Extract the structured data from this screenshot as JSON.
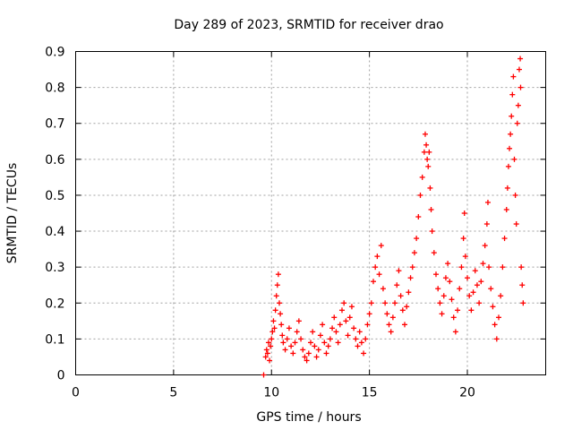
{
  "chart_data": {
    "type": "scatter",
    "title": "Day 289 of 2023, SRMTID for receiver drao",
    "xlabel": "GPS time / hours",
    "ylabel": "SRMTID / TECUs",
    "xlim": [
      0,
      24
    ],
    "ylim": [
      0,
      0.9
    ],
    "x_ticks": [
      "0",
      "5",
      "10",
      "15",
      "20"
    ],
    "x_tick_values": [
      0,
      5,
      10,
      15,
      20
    ],
    "y_ticks": [
      "0",
      "0.1",
      "0.2",
      "0.3",
      "0.4",
      "0.5",
      "0.6",
      "0.7",
      "0.8",
      "0.9"
    ],
    "y_tick_values": [
      0,
      0.1,
      0.2,
      0.3,
      0.4,
      0.5,
      0.6,
      0.7,
      0.8,
      0.9
    ],
    "grid": true,
    "series": [
      {
        "name": "SRMTID",
        "color": "#ff0000",
        "marker": "plus",
        "points": [
          [
            9.6,
            0.0
          ],
          [
            9.7,
            0.05
          ],
          [
            9.75,
            0.07
          ],
          [
            9.8,
            0.06
          ],
          [
            9.85,
            0.09
          ],
          [
            9.9,
            0.04
          ],
          [
            9.95,
            0.08
          ],
          [
            10.0,
            0.1
          ],
          [
            10.05,
            0.12
          ],
          [
            10.1,
            0.15
          ],
          [
            10.15,
            0.13
          ],
          [
            10.2,
            0.18
          ],
          [
            10.25,
            0.22
          ],
          [
            10.3,
            0.25
          ],
          [
            10.35,
            0.28
          ],
          [
            10.4,
            0.2
          ],
          [
            10.45,
            0.17
          ],
          [
            10.5,
            0.14
          ],
          [
            10.55,
            0.11
          ],
          [
            10.6,
            0.09
          ],
          [
            10.7,
            0.07
          ],
          [
            10.8,
            0.1
          ],
          [
            10.9,
            0.13
          ],
          [
            11.0,
            0.08
          ],
          [
            11.1,
            0.06
          ],
          [
            11.2,
            0.09
          ],
          [
            11.3,
            0.12
          ],
          [
            11.4,
            0.15
          ],
          [
            11.5,
            0.1
          ],
          [
            11.6,
            0.07
          ],
          [
            11.7,
            0.05
          ],
          [
            11.8,
            0.04
          ],
          [
            11.9,
            0.06
          ],
          [
            12.0,
            0.09
          ],
          [
            12.1,
            0.12
          ],
          [
            12.2,
            0.08
          ],
          [
            12.3,
            0.05
          ],
          [
            12.4,
            0.07
          ],
          [
            12.5,
            0.11
          ],
          [
            12.6,
            0.14
          ],
          [
            12.7,
            0.09
          ],
          [
            12.8,
            0.06
          ],
          [
            12.9,
            0.08
          ],
          [
            13.0,
            0.1
          ],
          [
            13.1,
            0.13
          ],
          [
            13.2,
            0.16
          ],
          [
            13.3,
            0.12
          ],
          [
            13.4,
            0.09
          ],
          [
            13.5,
            0.14
          ],
          [
            13.6,
            0.18
          ],
          [
            13.7,
            0.2
          ],
          [
            13.8,
            0.15
          ],
          [
            13.9,
            0.11
          ],
          [
            14.0,
            0.16
          ],
          [
            14.1,
            0.19
          ],
          [
            14.2,
            0.13
          ],
          [
            14.3,
            0.1
          ],
          [
            14.4,
            0.08
          ],
          [
            14.5,
            0.12
          ],
          [
            14.6,
            0.09
          ],
          [
            14.7,
            0.06
          ],
          [
            14.8,
            0.1
          ],
          [
            14.9,
            0.14
          ],
          [
            15.0,
            0.17
          ],
          [
            15.1,
            0.2
          ],
          [
            15.2,
            0.26
          ],
          [
            15.3,
            0.3
          ],
          [
            15.4,
            0.33
          ],
          [
            15.5,
            0.28
          ],
          [
            15.6,
            0.36
          ],
          [
            15.7,
            0.24
          ],
          [
            15.8,
            0.2
          ],
          [
            15.9,
            0.17
          ],
          [
            16.0,
            0.14
          ],
          [
            16.1,
            0.12
          ],
          [
            16.2,
            0.16
          ],
          [
            16.3,
            0.2
          ],
          [
            16.4,
            0.25
          ],
          [
            16.5,
            0.29
          ],
          [
            16.6,
            0.22
          ],
          [
            16.7,
            0.18
          ],
          [
            16.8,
            0.14
          ],
          [
            16.9,
            0.19
          ],
          [
            17.0,
            0.23
          ],
          [
            17.1,
            0.27
          ],
          [
            17.2,
            0.3
          ],
          [
            17.3,
            0.34
          ],
          [
            17.4,
            0.38
          ],
          [
            17.5,
            0.44
          ],
          [
            17.6,
            0.5
          ],
          [
            17.7,
            0.55
          ],
          [
            17.8,
            0.62
          ],
          [
            17.85,
            0.67
          ],
          [
            17.9,
            0.64
          ],
          [
            17.95,
            0.6
          ],
          [
            18.0,
            0.58
          ],
          [
            18.05,
            0.62
          ],
          [
            18.1,
            0.52
          ],
          [
            18.15,
            0.46
          ],
          [
            18.2,
            0.4
          ],
          [
            18.3,
            0.34
          ],
          [
            18.4,
            0.28
          ],
          [
            18.5,
            0.24
          ],
          [
            18.6,
            0.2
          ],
          [
            18.7,
            0.17
          ],
          [
            18.8,
            0.22
          ],
          [
            18.9,
            0.27
          ],
          [
            19.0,
            0.31
          ],
          [
            19.1,
            0.26
          ],
          [
            19.2,
            0.21
          ],
          [
            19.3,
            0.16
          ],
          [
            19.4,
            0.12
          ],
          [
            19.5,
            0.18
          ],
          [
            19.6,
            0.24
          ],
          [
            19.7,
            0.3
          ],
          [
            19.8,
            0.38
          ],
          [
            19.85,
            0.45
          ],
          [
            19.9,
            0.33
          ],
          [
            20.0,
            0.27
          ],
          [
            20.1,
            0.22
          ],
          [
            20.2,
            0.18
          ],
          [
            20.3,
            0.23
          ],
          [
            20.4,
            0.29
          ],
          [
            20.5,
            0.25
          ],
          [
            20.6,
            0.2
          ],
          [
            20.7,
            0.26
          ],
          [
            20.8,
            0.31
          ],
          [
            20.9,
            0.36
          ],
          [
            21.0,
            0.42
          ],
          [
            21.05,
            0.48
          ],
          [
            21.1,
            0.3
          ],
          [
            21.2,
            0.24
          ],
          [
            21.3,
            0.19
          ],
          [
            21.4,
            0.14
          ],
          [
            21.5,
            0.1
          ],
          [
            21.6,
            0.16
          ],
          [
            21.7,
            0.22
          ],
          [
            21.8,
            0.3
          ],
          [
            21.9,
            0.38
          ],
          [
            22.0,
            0.46
          ],
          [
            22.05,
            0.52
          ],
          [
            22.1,
            0.58
          ],
          [
            22.15,
            0.63
          ],
          [
            22.2,
            0.67
          ],
          [
            22.25,
            0.72
          ],
          [
            22.3,
            0.78
          ],
          [
            22.35,
            0.83
          ],
          [
            22.4,
            0.6
          ],
          [
            22.45,
            0.5
          ],
          [
            22.5,
            0.42
          ],
          [
            22.55,
            0.7
          ],
          [
            22.6,
            0.75
          ],
          [
            22.65,
            0.85
          ],
          [
            22.7,
            0.88
          ],
          [
            22.72,
            0.8
          ],
          [
            22.75,
            0.3
          ],
          [
            22.8,
            0.25
          ],
          [
            22.85,
            0.2
          ]
        ]
      }
    ]
  }
}
